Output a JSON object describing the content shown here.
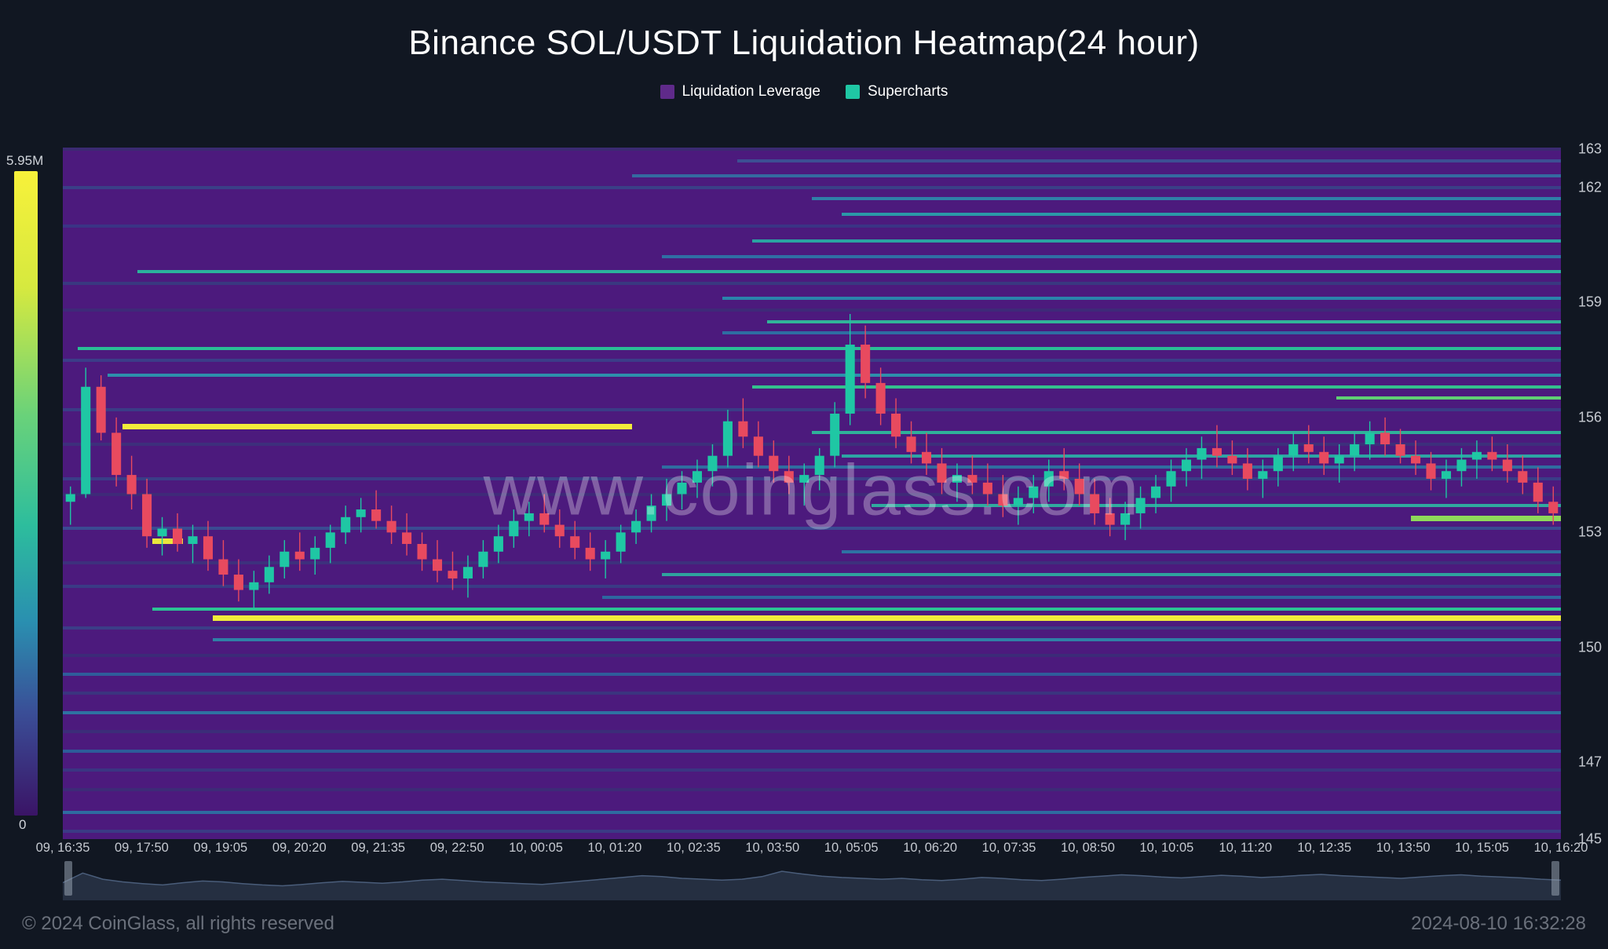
{
  "title": "Binance SOL/USDT Liquidation Heatmap(24 hour)",
  "legend": [
    {
      "label": "Liquidation Leverage",
      "color": "#5f2a8a"
    },
    {
      "label": "Supercharts",
      "color": "#1fc7a4"
    }
  ],
  "watermark": "www.coinglass.com",
  "footer_left": "© 2024 CoinGlass, all rights reserved",
  "footer_right": "2024-08-10 16:32:28",
  "colorbar": {
    "max_label": "5.95M",
    "min_label": "0",
    "stops": [
      {
        "pct": 0,
        "color": "#f7f13a"
      },
      {
        "pct": 18,
        "color": "#d6e93f"
      },
      {
        "pct": 38,
        "color": "#69d27a"
      },
      {
        "pct": 55,
        "color": "#2dbd9d"
      },
      {
        "pct": 70,
        "color": "#2a8fb0"
      },
      {
        "pct": 84,
        "color": "#3a4e97"
      },
      {
        "pct": 100,
        "color": "#3a1466"
      }
    ]
  },
  "chart": {
    "type": "heatmap+candlestick",
    "background_color": "#4c1a7d",
    "y_axis": {
      "min": 145,
      "max": 163,
      "ticks": [
        145,
        147,
        150,
        153,
        156,
        159,
        162,
        163
      ]
    },
    "x_axis": {
      "labels": [
        "09, 16:35",
        "09, 17:50",
        "09, 19:05",
        "09, 20:20",
        "09, 21:35",
        "09, 22:50",
        "10, 00:05",
        "10, 01:20",
        "10, 02:35",
        "10, 03:50",
        "10, 05:05",
        "10, 06:20",
        "10, 07:35",
        "10, 08:50",
        "10, 10:05",
        "10, 11:20",
        "10, 12:35",
        "10, 13:50",
        "10, 15:05",
        "10, 16:20"
      ]
    },
    "heat_bands": [
      {
        "price": 163.0,
        "start": 0.0,
        "end": 1.0,
        "color": "#3b2a72"
      },
      {
        "price": 162.7,
        "start": 0.45,
        "end": 1.0,
        "color": "#3d4f93"
      },
      {
        "price": 162.3,
        "start": 0.38,
        "end": 1.0,
        "color": "#346aa0"
      },
      {
        "price": 162.0,
        "start": 0.0,
        "end": 1.0,
        "color": "#3a3f87"
      },
      {
        "price": 161.7,
        "start": 0.5,
        "end": 1.0,
        "color": "#2f80a8"
      },
      {
        "price": 161.3,
        "start": 0.52,
        "end": 1.0,
        "color": "#2b98a8"
      },
      {
        "price": 161.0,
        "start": 0.0,
        "end": 1.0,
        "color": "#3a3485"
      },
      {
        "price": 160.6,
        "start": 0.46,
        "end": 1.0,
        "color": "#2aa3a2"
      },
      {
        "price": 160.2,
        "start": 0.4,
        "end": 1.0,
        "color": "#2f6fa4"
      },
      {
        "price": 159.8,
        "start": 0.05,
        "end": 1.0,
        "color": "#2bb29c"
      },
      {
        "price": 159.5,
        "start": 0.0,
        "end": 1.0,
        "color": "#393880"
      },
      {
        "price": 159.1,
        "start": 0.44,
        "end": 1.0,
        "color": "#2a84ab"
      },
      {
        "price": 158.8,
        "start": 0.0,
        "end": 1.0,
        "color": "#3e2a78"
      },
      {
        "price": 158.5,
        "start": 0.47,
        "end": 1.0,
        "color": "#31b499"
      },
      {
        "price": 158.2,
        "start": 0.44,
        "end": 1.0,
        "color": "#2e6da2"
      },
      {
        "price": 157.8,
        "start": 0.01,
        "end": 1.0,
        "color": "#2abf96"
      },
      {
        "price": 157.5,
        "start": 0.0,
        "end": 1.0,
        "color": "#3b3d88"
      },
      {
        "price": 157.1,
        "start": 0.03,
        "end": 1.0,
        "color": "#2d90ac"
      },
      {
        "price": 156.8,
        "start": 0.46,
        "end": 1.0,
        "color": "#34c08d"
      },
      {
        "price": 156.5,
        "start": 0.85,
        "end": 1.0,
        "color": "#5fd174"
      },
      {
        "price": 156.2,
        "start": 0.0,
        "end": 1.0,
        "color": "#3a3c86"
      },
      {
        "price": 155.8,
        "start": 0.04,
        "end": 0.38,
        "color": "#f2ed3a"
      },
      {
        "price": 155.6,
        "start": 0.5,
        "end": 1.0,
        "color": "#2fb199"
      },
      {
        "price": 155.3,
        "start": 0.0,
        "end": 1.0,
        "color": "#3d2f7c"
      },
      {
        "price": 155.0,
        "start": 0.52,
        "end": 1.0,
        "color": "#2da5a4"
      },
      {
        "price": 154.7,
        "start": 0.4,
        "end": 1.0,
        "color": "#2f6da0"
      },
      {
        "price": 154.4,
        "start": 0.0,
        "end": 1.0,
        "color": "#3a3d87"
      },
      {
        "price": 154.0,
        "start": 0.0,
        "end": 1.0,
        "color": "#3f2a79"
      },
      {
        "price": 153.7,
        "start": 0.54,
        "end": 1.0,
        "color": "#30aa9f"
      },
      {
        "price": 153.4,
        "start": 0.9,
        "end": 1.0,
        "color": "#8ed95a"
      },
      {
        "price": 153.1,
        "start": 0.0,
        "end": 1.0,
        "color": "#3a4a92"
      },
      {
        "price": 152.8,
        "start": 0.06,
        "end": 0.08,
        "color": "#e9e63c"
      },
      {
        "price": 152.5,
        "start": 0.52,
        "end": 1.0,
        "color": "#2e72a3"
      },
      {
        "price": 152.2,
        "start": 0.0,
        "end": 1.0,
        "color": "#3d307d"
      },
      {
        "price": 151.9,
        "start": 0.4,
        "end": 1.0,
        "color": "#2fa39e"
      },
      {
        "price": 151.6,
        "start": 0.0,
        "end": 1.0,
        "color": "#3a3b85"
      },
      {
        "price": 151.3,
        "start": 0.36,
        "end": 1.0,
        "color": "#2d67a0"
      },
      {
        "price": 151.0,
        "start": 0.06,
        "end": 1.0,
        "color": "#2cc394"
      },
      {
        "price": 150.8,
        "start": 0.1,
        "end": 1.0,
        "color": "#f0eb3a"
      },
      {
        "price": 150.5,
        "start": 0.0,
        "end": 1.0,
        "color": "#3b3d87"
      },
      {
        "price": 150.2,
        "start": 0.1,
        "end": 1.0,
        "color": "#2f80a6"
      },
      {
        "price": 149.8,
        "start": 0.0,
        "end": 1.0,
        "color": "#3c2b78"
      },
      {
        "price": 149.3,
        "start": 0.0,
        "end": 1.0,
        "color": "#2f5d9b"
      },
      {
        "price": 148.8,
        "start": 0.0,
        "end": 1.0,
        "color": "#3b347f"
      },
      {
        "price": 148.3,
        "start": 0.0,
        "end": 1.0,
        "color": "#2e72a1"
      },
      {
        "price": 147.8,
        "start": 0.0,
        "end": 1.0,
        "color": "#3c2d79"
      },
      {
        "price": 147.3,
        "start": 0.0,
        "end": 1.0,
        "color": "#2d5c99"
      },
      {
        "price": 146.8,
        "start": 0.0,
        "end": 1.0,
        "color": "#3a3582"
      },
      {
        "price": 146.3,
        "start": 0.0,
        "end": 1.0,
        "color": "#3d2b77"
      },
      {
        "price": 145.7,
        "start": 0.0,
        "end": 1.0,
        "color": "#2e6ca0"
      },
      {
        "price": 145.2,
        "start": 0.0,
        "end": 1.0,
        "color": "#3b3a85"
      }
    ],
    "candles": {
      "up_color": "#1fc7a4",
      "down_color": "#e84a5f",
      "wick_color_up": "#1fc7a4",
      "wick_color_down": "#e84a5f",
      "series": [
        {
          "o": 153.8,
          "h": 154.2,
          "l": 153.2,
          "c": 154.0
        },
        {
          "o": 154.0,
          "h": 157.3,
          "l": 153.9,
          "c": 156.8
        },
        {
          "o": 156.8,
          "h": 157.1,
          "l": 155.4,
          "c": 155.6
        },
        {
          "o": 155.6,
          "h": 156.0,
          "l": 154.2,
          "c": 154.5
        },
        {
          "o": 154.5,
          "h": 155.0,
          "l": 153.6,
          "c": 154.0
        },
        {
          "o": 154.0,
          "h": 154.4,
          "l": 152.6,
          "c": 152.9
        },
        {
          "o": 152.9,
          "h": 153.4,
          "l": 152.4,
          "c": 153.1
        },
        {
          "o": 153.1,
          "h": 153.5,
          "l": 152.5,
          "c": 152.7
        },
        {
          "o": 152.7,
          "h": 153.2,
          "l": 152.2,
          "c": 152.9
        },
        {
          "o": 152.9,
          "h": 153.3,
          "l": 152.0,
          "c": 152.3
        },
        {
          "o": 152.3,
          "h": 152.8,
          "l": 151.6,
          "c": 151.9
        },
        {
          "o": 151.9,
          "h": 152.3,
          "l": 151.2,
          "c": 151.5
        },
        {
          "o": 151.5,
          "h": 152.0,
          "l": 151.0,
          "c": 151.7
        },
        {
          "o": 151.7,
          "h": 152.4,
          "l": 151.4,
          "c": 152.1
        },
        {
          "o": 152.1,
          "h": 152.8,
          "l": 151.8,
          "c": 152.5
        },
        {
          "o": 152.5,
          "h": 153.0,
          "l": 152.0,
          "c": 152.3
        },
        {
          "o": 152.3,
          "h": 152.9,
          "l": 151.9,
          "c": 152.6
        },
        {
          "o": 152.6,
          "h": 153.2,
          "l": 152.2,
          "c": 153.0
        },
        {
          "o": 153.0,
          "h": 153.7,
          "l": 152.7,
          "c": 153.4
        },
        {
          "o": 153.4,
          "h": 153.9,
          "l": 153.0,
          "c": 153.6
        },
        {
          "o": 153.6,
          "h": 154.1,
          "l": 153.1,
          "c": 153.3
        },
        {
          "o": 153.3,
          "h": 153.7,
          "l": 152.7,
          "c": 153.0
        },
        {
          "o": 153.0,
          "h": 153.5,
          "l": 152.4,
          "c": 152.7
        },
        {
          "o": 152.7,
          "h": 153.0,
          "l": 152.0,
          "c": 152.3
        },
        {
          "o": 152.3,
          "h": 152.8,
          "l": 151.7,
          "c": 152.0
        },
        {
          "o": 152.0,
          "h": 152.5,
          "l": 151.5,
          "c": 151.8
        },
        {
          "o": 151.8,
          "h": 152.4,
          "l": 151.3,
          "c": 152.1
        },
        {
          "o": 152.1,
          "h": 152.8,
          "l": 151.8,
          "c": 152.5
        },
        {
          "o": 152.5,
          "h": 153.2,
          "l": 152.2,
          "c": 152.9
        },
        {
          "o": 152.9,
          "h": 153.6,
          "l": 152.6,
          "c": 153.3
        },
        {
          "o": 153.3,
          "h": 153.8,
          "l": 152.9,
          "c": 153.5
        },
        {
          "o": 153.5,
          "h": 154.0,
          "l": 153.0,
          "c": 153.2
        },
        {
          "o": 153.2,
          "h": 153.6,
          "l": 152.6,
          "c": 152.9
        },
        {
          "o": 152.9,
          "h": 153.3,
          "l": 152.3,
          "c": 152.6
        },
        {
          "o": 152.6,
          "h": 153.0,
          "l": 152.0,
          "c": 152.3
        },
        {
          "o": 152.3,
          "h": 152.8,
          "l": 151.8,
          "c": 152.5
        },
        {
          "o": 152.5,
          "h": 153.2,
          "l": 152.2,
          "c": 153.0
        },
        {
          "o": 153.0,
          "h": 153.6,
          "l": 152.7,
          "c": 153.3
        },
        {
          "o": 153.3,
          "h": 154.0,
          "l": 153.0,
          "c": 153.7
        },
        {
          "o": 153.7,
          "h": 154.4,
          "l": 153.3,
          "c": 154.0
        },
        {
          "o": 154.0,
          "h": 154.6,
          "l": 153.6,
          "c": 154.3
        },
        {
          "o": 154.3,
          "h": 154.9,
          "l": 153.9,
          "c": 154.6
        },
        {
          "o": 154.6,
          "h": 155.3,
          "l": 154.2,
          "c": 155.0
        },
        {
          "o": 155.0,
          "h": 156.2,
          "l": 154.7,
          "c": 155.9
        },
        {
          "o": 155.9,
          "h": 156.5,
          "l": 155.2,
          "c": 155.5
        },
        {
          "o": 155.5,
          "h": 155.9,
          "l": 154.7,
          "c": 155.0
        },
        {
          "o": 155.0,
          "h": 155.4,
          "l": 154.3,
          "c": 154.6
        },
        {
          "o": 154.6,
          "h": 155.0,
          "l": 154.0,
          "c": 154.3
        },
        {
          "o": 154.3,
          "h": 154.8,
          "l": 153.7,
          "c": 154.5
        },
        {
          "o": 154.5,
          "h": 155.2,
          "l": 154.1,
          "c": 155.0
        },
        {
          "o": 155.0,
          "h": 156.4,
          "l": 154.7,
          "c": 156.1
        },
        {
          "o": 156.1,
          "h": 158.7,
          "l": 155.8,
          "c": 157.9
        },
        {
          "o": 157.9,
          "h": 158.4,
          "l": 156.5,
          "c": 156.9
        },
        {
          "o": 156.9,
          "h": 157.3,
          "l": 155.8,
          "c": 156.1
        },
        {
          "o": 156.1,
          "h": 156.5,
          "l": 155.2,
          "c": 155.5
        },
        {
          "o": 155.5,
          "h": 155.9,
          "l": 154.8,
          "c": 155.1
        },
        {
          "o": 155.1,
          "h": 155.6,
          "l": 154.5,
          "c": 154.8
        },
        {
          "o": 154.8,
          "h": 155.2,
          "l": 154.0,
          "c": 154.3
        },
        {
          "o": 154.3,
          "h": 154.8,
          "l": 153.8,
          "c": 154.5
        },
        {
          "o": 154.5,
          "h": 155.0,
          "l": 154.0,
          "c": 154.3
        },
        {
          "o": 154.3,
          "h": 154.8,
          "l": 153.7,
          "c": 154.0
        },
        {
          "o": 154.0,
          "h": 154.5,
          "l": 153.4,
          "c": 153.7
        },
        {
          "o": 153.7,
          "h": 154.2,
          "l": 153.2,
          "c": 153.9
        },
        {
          "o": 153.9,
          "h": 154.5,
          "l": 153.5,
          "c": 154.2
        },
        {
          "o": 154.2,
          "h": 154.9,
          "l": 153.8,
          "c": 154.6
        },
        {
          "o": 154.6,
          "h": 155.2,
          "l": 154.1,
          "c": 154.4
        },
        {
          "o": 154.4,
          "h": 154.8,
          "l": 153.7,
          "c": 154.0
        },
        {
          "o": 154.0,
          "h": 154.4,
          "l": 153.2,
          "c": 153.5
        },
        {
          "o": 153.5,
          "h": 153.9,
          "l": 152.9,
          "c": 153.2
        },
        {
          "o": 153.2,
          "h": 153.8,
          "l": 152.8,
          "c": 153.5
        },
        {
          "o": 153.5,
          "h": 154.2,
          "l": 153.1,
          "c": 153.9
        },
        {
          "o": 153.9,
          "h": 154.5,
          "l": 153.5,
          "c": 154.2
        },
        {
          "o": 154.2,
          "h": 154.9,
          "l": 153.8,
          "c": 154.6
        },
        {
          "o": 154.6,
          "h": 155.2,
          "l": 154.2,
          "c": 154.9
        },
        {
          "o": 154.9,
          "h": 155.5,
          "l": 154.4,
          "c": 155.2
        },
        {
          "o": 155.2,
          "h": 155.8,
          "l": 154.7,
          "c": 155.0
        },
        {
          "o": 155.0,
          "h": 155.4,
          "l": 154.5,
          "c": 154.8
        },
        {
          "o": 154.8,
          "h": 155.2,
          "l": 154.1,
          "c": 154.4
        },
        {
          "o": 154.4,
          "h": 154.9,
          "l": 153.9,
          "c": 154.6
        },
        {
          "o": 154.6,
          "h": 155.2,
          "l": 154.2,
          "c": 155.0
        },
        {
          "o": 155.0,
          "h": 155.6,
          "l": 154.6,
          "c": 155.3
        },
        {
          "o": 155.3,
          "h": 155.8,
          "l": 154.8,
          "c": 155.1
        },
        {
          "o": 155.1,
          "h": 155.5,
          "l": 154.5,
          "c": 154.8
        },
        {
          "o": 154.8,
          "h": 155.3,
          "l": 154.3,
          "c": 155.0
        },
        {
          "o": 155.0,
          "h": 155.6,
          "l": 154.6,
          "c": 155.3
        },
        {
          "o": 155.3,
          "h": 155.9,
          "l": 154.9,
          "c": 155.6
        },
        {
          "o": 155.6,
          "h": 156.0,
          "l": 155.0,
          "c": 155.3
        },
        {
          "o": 155.3,
          "h": 155.7,
          "l": 154.8,
          "c": 155.0
        },
        {
          "o": 155.0,
          "h": 155.4,
          "l": 154.5,
          "c": 154.8
        },
        {
          "o": 154.8,
          "h": 155.1,
          "l": 154.1,
          "c": 154.4
        },
        {
          "o": 154.4,
          "h": 154.9,
          "l": 153.9,
          "c": 154.6
        },
        {
          "o": 154.6,
          "h": 155.2,
          "l": 154.2,
          "c": 154.9
        },
        {
          "o": 154.9,
          "h": 155.4,
          "l": 154.4,
          "c": 155.1
        },
        {
          "o": 155.1,
          "h": 155.5,
          "l": 154.6,
          "c": 154.9
        },
        {
          "o": 154.9,
          "h": 155.3,
          "l": 154.3,
          "c": 154.6
        },
        {
          "o": 154.6,
          "h": 155.0,
          "l": 154.0,
          "c": 154.3
        },
        {
          "o": 154.3,
          "h": 154.7,
          "l": 153.5,
          "c": 153.8
        },
        {
          "o": 153.8,
          "h": 154.2,
          "l": 153.2,
          "c": 153.5
        }
      ]
    },
    "navigator": {
      "line_color": "#4a5d7a",
      "fill_color": "rgba(74,93,122,0.35)",
      "handle_color": "rgba(150,160,175,0.55)",
      "points": [
        0.4,
        0.62,
        0.48,
        0.42,
        0.38,
        0.35,
        0.4,
        0.44,
        0.42,
        0.38,
        0.35,
        0.33,
        0.36,
        0.4,
        0.43,
        0.41,
        0.39,
        0.42,
        0.46,
        0.48,
        0.45,
        0.42,
        0.4,
        0.38,
        0.36,
        0.4,
        0.44,
        0.48,
        0.52,
        0.56,
        0.54,
        0.5,
        0.48,
        0.46,
        0.48,
        0.54,
        0.66,
        0.6,
        0.55,
        0.52,
        0.5,
        0.48,
        0.5,
        0.47,
        0.45,
        0.48,
        0.52,
        0.5,
        0.47,
        0.45,
        0.48,
        0.52,
        0.55,
        0.58,
        0.56,
        0.53,
        0.51,
        0.54,
        0.57,
        0.55,
        0.52,
        0.54,
        0.57,
        0.59,
        0.56,
        0.54,
        0.52,
        0.5,
        0.53,
        0.56,
        0.58,
        0.55,
        0.53,
        0.51,
        0.48,
        0.46
      ]
    }
  }
}
